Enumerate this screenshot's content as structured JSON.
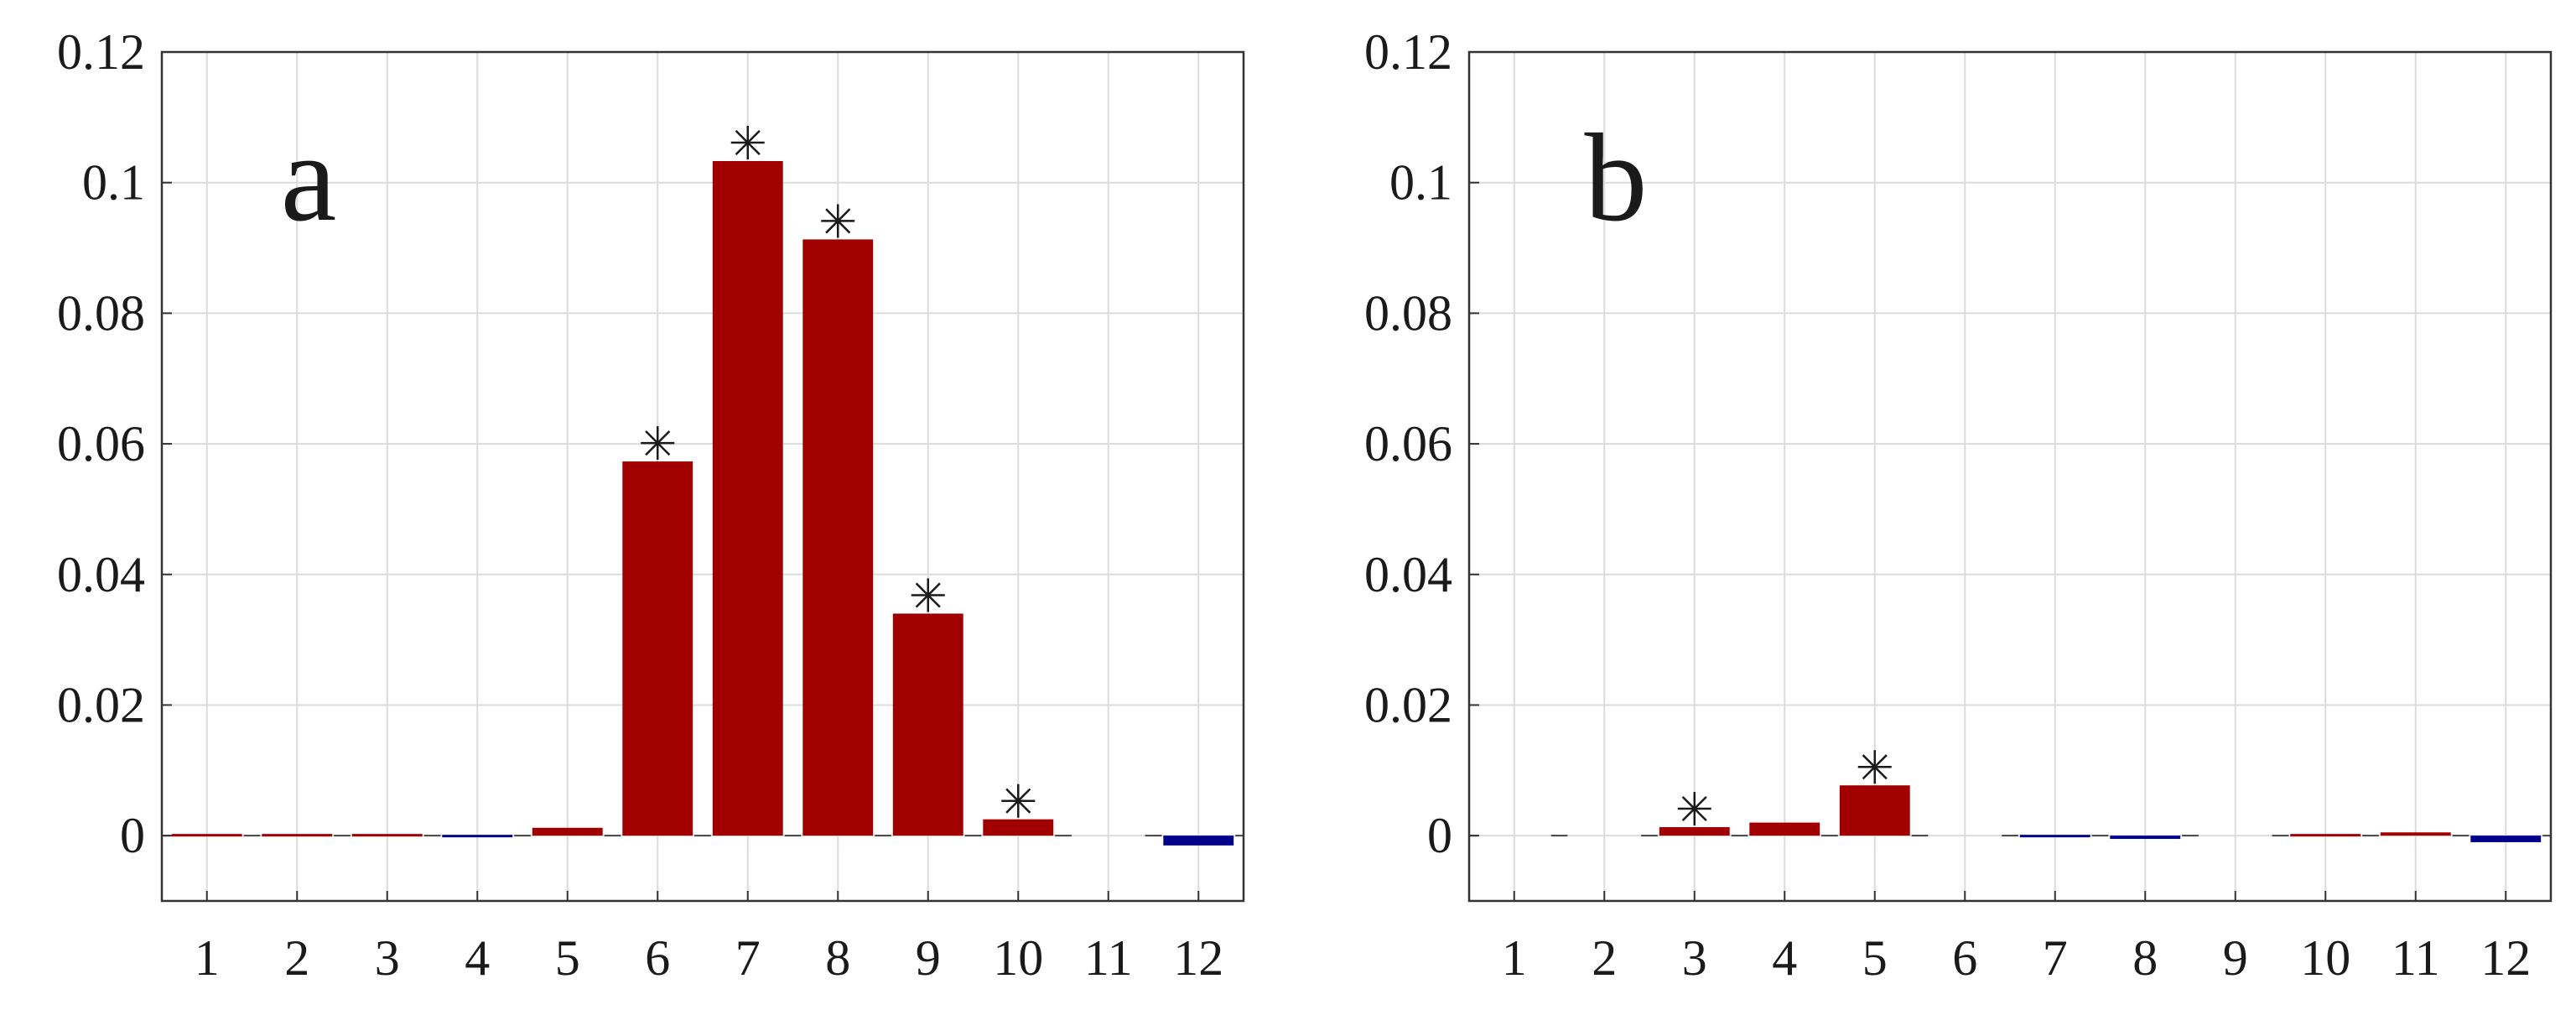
{
  "colors": {
    "positive": "#A00000",
    "negative": "#00008B",
    "grid": "#dcdcdc",
    "axis": "#333333",
    "marker": "#1a1a1a"
  },
  "chart_data": [
    {
      "type": "bar",
      "panel_label": "a",
      "categories": [
        "1",
        "2",
        "3",
        "4",
        "5",
        "6",
        "7",
        "8",
        "9",
        "10",
        "11",
        "12"
      ],
      "values": [
        0.0003,
        0.0003,
        0.0003,
        -0.0003,
        0.0012,
        0.0573,
        0.1033,
        0.0913,
        0.034,
        0.0025,
        0,
        -0.0015
      ],
      "significant": [
        false,
        false,
        false,
        false,
        false,
        true,
        true,
        true,
        true,
        true,
        false,
        false
      ],
      "ylim": [
        -0.01,
        0.12
      ],
      "yticks": [
        0,
        0.02,
        0.04,
        0.06,
        0.08,
        0.1,
        0.12
      ],
      "ytick_labels": [
        "0",
        "0.02",
        "0.04",
        "0.06",
        "0.08",
        "0.1",
        "0.12"
      ],
      "grid": true
    },
    {
      "type": "bar",
      "panel_label": "b",
      "categories": [
        "1",
        "2",
        "3",
        "4",
        "5",
        "6",
        "7",
        "8",
        "9",
        "10",
        "11",
        "12"
      ],
      "values": [
        0,
        0,
        0.0013,
        0.002,
        0.0077,
        0,
        -0.0002,
        -0.0005,
        0,
        0.0002,
        0.0005,
        -0.001
      ],
      "significant": [
        false,
        false,
        true,
        false,
        true,
        false,
        false,
        false,
        false,
        false,
        false,
        false
      ],
      "ylim": [
        -0.01,
        0.12
      ],
      "yticks": [
        0,
        0.02,
        0.04,
        0.06,
        0.08,
        0.1,
        0.12
      ],
      "ytick_labels": [
        "0",
        "0.02",
        "0.04",
        "0.06",
        "0.08",
        "0.1",
        "0.12"
      ],
      "grid": true
    }
  ]
}
